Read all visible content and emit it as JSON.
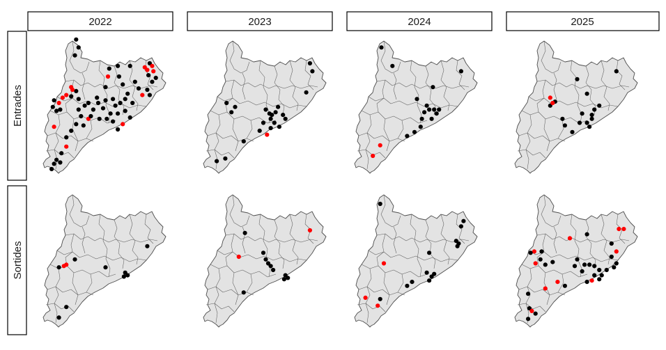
{
  "columns": [
    "2022",
    "2023",
    "2024",
    "2025"
  ],
  "rows": [
    "Entrades",
    "Sortides"
  ],
  "colors": {
    "black": "#000000",
    "red": "#ff0000",
    "land": "#e3e3e3",
    "border": "#4d4d4d"
  },
  "points": [
    [
      [
        [
          0.28,
          0.02,
          "black"
        ],
        [
          0.3,
          0.08,
          "black"
        ],
        [
          0.27,
          0.14,
          "black"
        ],
        [
          0.88,
          0.2,
          "black"
        ],
        [
          0.86,
          0.25,
          "red"
        ],
        [
          0.84,
          0.23,
          "red"
        ],
        [
          0.9,
          0.22,
          "red"
        ],
        [
          0.91,
          0.26,
          "red"
        ],
        [
          0.87,
          0.29,
          "black"
        ],
        [
          0.93,
          0.31,
          "black"
        ],
        [
          0.9,
          0.34,
          "black"
        ],
        [
          0.86,
          0.4,
          "black"
        ],
        [
          0.82,
          0.44,
          "red"
        ],
        [
          0.88,
          0.44,
          "black"
        ],
        [
          0.55,
          0.24,
          "black"
        ],
        [
          0.54,
          0.3,
          "red"
        ],
        [
          0.52,
          0.38,
          "black"
        ],
        [
          0.62,
          0.22,
          "black"
        ],
        [
          0.63,
          0.3,
          "black"
        ],
        [
          0.72,
          0.22,
          "black"
        ],
        [
          0.76,
          0.34,
          "black"
        ],
        [
          0.7,
          0.43,
          "black"
        ],
        [
          0.68,
          0.56,
          "black"
        ],
        [
          0.72,
          0.61,
          "black"
        ],
        [
          0.66,
          0.66,
          "red"
        ],
        [
          0.62,
          0.7,
          "black"
        ],
        [
          0.58,
          0.64,
          "black"
        ],
        [
          0.56,
          0.58,
          "black"
        ],
        [
          0.6,
          0.52,
          "black"
        ],
        [
          0.5,
          0.54,
          "black"
        ],
        [
          0.46,
          0.5,
          "black"
        ],
        [
          0.42,
          0.55,
          "black"
        ],
        [
          0.38,
          0.5,
          "black"
        ],
        [
          0.3,
          0.47,
          "black"
        ],
        [
          0.24,
          0.45,
          "black"
        ],
        [
          0.28,
          0.41,
          "black"
        ],
        [
          0.25,
          0.4,
          "red"
        ],
        [
          0.24,
          0.38,
          "red"
        ],
        [
          0.2,
          0.44,
          "red"
        ],
        [
          0.17,
          0.46,
          "red"
        ],
        [
          0.14,
          0.5,
          "red"
        ],
        [
          0.1,
          0.48,
          "black"
        ],
        [
          0.15,
          0.55,
          "black"
        ],
        [
          0.09,
          0.53,
          "black"
        ],
        [
          0.12,
          0.56,
          "black"
        ],
        [
          0.3,
          0.55,
          "black"
        ],
        [
          0.32,
          0.6,
          "black"
        ],
        [
          0.28,
          0.66,
          "black"
        ],
        [
          0.34,
          0.67,
          "black"
        ],
        [
          0.38,
          0.62,
          "red"
        ],
        [
          0.24,
          0.71,
          "black"
        ],
        [
          0.2,
          0.76,
          "black"
        ],
        [
          0.1,
          0.68,
          "red"
        ],
        [
          0.2,
          0.83,
          "red"
        ],
        [
          0.16,
          0.88,
          "black"
        ],
        [
          0.12,
          0.93,
          "black"
        ],
        [
          0.15,
          0.95,
          "black"
        ],
        [
          0.1,
          0.96,
          "black"
        ],
        [
          0.08,
          1.0,
          "black"
        ],
        [
          0.45,
          0.46,
          "black"
        ],
        [
          0.52,
          0.48,
          "black"
        ],
        [
          0.58,
          0.47,
          "black"
        ],
        [
          0.64,
          0.5,
          "black"
        ],
        [
          0.74,
          0.5,
          "black"
        ],
        [
          0.68,
          0.47,
          "black"
        ],
        [
          0.62,
          0.58,
          "black"
        ],
        [
          0.53,
          0.62,
          "black"
        ],
        [
          0.47,
          0.62,
          "black"
        ],
        [
          0.4,
          0.6,
          "black"
        ],
        [
          0.35,
          0.52,
          "black"
        ],
        [
          0.79,
          0.39,
          "black"
        ],
        [
          0.66,
          0.36,
          "black"
        ]
      ],
      [
        [
          0.88,
          0.2,
          "black"
        ],
        [
          0.9,
          0.26,
          "black"
        ],
        [
          0.85,
          0.42,
          "black"
        ],
        [
          0.2,
          0.5,
          "black"
        ],
        [
          0.27,
          0.53,
          "black"
        ],
        [
          0.24,
          0.57,
          "black"
        ],
        [
          0.52,
          0.55,
          "black"
        ],
        [
          0.56,
          0.62,
          "black"
        ],
        [
          0.6,
          0.57,
          "black"
        ],
        [
          0.62,
          0.53,
          "black"
        ],
        [
          0.59,
          0.65,
          "black"
        ],
        [
          0.56,
          0.69,
          "black"
        ],
        [
          0.5,
          0.65,
          "black"
        ],
        [
          0.47,
          0.71,
          "black"
        ],
        [
          0.53,
          0.74,
          "red"
        ],
        [
          0.66,
          0.59,
          "black"
        ],
        [
          0.68,
          0.62,
          "black"
        ],
        [
          0.63,
          0.68,
          "black"
        ],
        [
          0.55,
          0.58,
          "black"
        ],
        [
          0.34,
          0.79,
          "black"
        ],
        [
          0.12,
          0.94,
          "black"
        ],
        [
          0.19,
          0.92,
          "black"
        ],
        [
          0.57,
          0.59,
          "black"
        ]
      ],
      [
        [
          0.23,
          0.08,
          "black"
        ],
        [
          0.32,
          0.22,
          "black"
        ],
        [
          0.88,
          0.26,
          "black"
        ],
        [
          0.65,
          0.38,
          "black"
        ],
        [
          0.52,
          0.47,
          "black"
        ],
        [
          0.6,
          0.52,
          "black"
        ],
        [
          0.62,
          0.55,
          "black"
        ],
        [
          0.58,
          0.57,
          "black"
        ],
        [
          0.66,
          0.55,
          "black"
        ],
        [
          0.68,
          0.58,
          "black"
        ],
        [
          0.64,
          0.62,
          "black"
        ],
        [
          0.7,
          0.55,
          "black"
        ],
        [
          0.56,
          0.62,
          "black"
        ],
        [
          0.5,
          0.72,
          "black"
        ],
        [
          0.44,
          0.75,
          "black"
        ],
        [
          0.55,
          0.68,
          "black"
        ],
        [
          0.22,
          0.82,
          "red"
        ],
        [
          0.16,
          0.9,
          "red"
        ]
      ],
      [
        [
          0.84,
          0.26,
          "black"
        ],
        [
          0.52,
          0.32,
          "black"
        ],
        [
          0.6,
          0.43,
          "black"
        ],
        [
          0.7,
          0.52,
          "black"
        ],
        [
          0.66,
          0.55,
          "black"
        ],
        [
          0.56,
          0.58,
          "black"
        ],
        [
          0.6,
          0.65,
          "black"
        ],
        [
          0.64,
          0.62,
          "black"
        ],
        [
          0.62,
          0.68,
          "black"
        ],
        [
          0.54,
          0.65,
          "black"
        ],
        [
          0.48,
          0.72,
          "black"
        ],
        [
          0.42,
          0.67,
          "black"
        ],
        [
          0.4,
          0.62,
          "black"
        ],
        [
          0.3,
          0.52,
          "black"
        ],
        [
          0.34,
          0.49,
          "black"
        ],
        [
          0.3,
          0.46,
          "red"
        ],
        [
          0.32,
          0.5,
          "red"
        ],
        [
          0.64,
          0.59,
          "black"
        ]
      ]
    ],
    [
      [
        [
          0.86,
          0.42,
          "black"
        ],
        [
          0.27,
          0.52,
          "black"
        ],
        [
          0.2,
          0.56,
          "red"
        ],
        [
          0.18,
          0.57,
          "red"
        ],
        [
          0.14,
          0.58,
          "black"
        ],
        [
          0.52,
          0.58,
          "black"
        ],
        [
          0.68,
          0.62,
          "black"
        ],
        [
          0.7,
          0.64,
          "black"
        ],
        [
          0.67,
          0.65,
          "black"
        ],
        [
          0.2,
          0.88,
          "black"
        ],
        [
          0.14,
          0.96,
          "black"
        ]
      ],
      [
        [
          0.88,
          0.3,
          "red"
        ],
        [
          0.35,
          0.32,
          "black"
        ],
        [
          0.3,
          0.5,
          "red"
        ],
        [
          0.5,
          0.47,
          "black"
        ],
        [
          0.52,
          0.52,
          "black"
        ],
        [
          0.54,
          0.55,
          "black"
        ],
        [
          0.56,
          0.57,
          "black"
        ],
        [
          0.58,
          0.6,
          "black"
        ],
        [
          0.68,
          0.64,
          "black"
        ],
        [
          0.7,
          0.66,
          "black"
        ],
        [
          0.67,
          0.67,
          "black"
        ],
        [
          0.34,
          0.77,
          "black"
        ]
      ],
      [
        [
          0.22,
          0.1,
          "black"
        ],
        [
          0.9,
          0.23,
          "black"
        ],
        [
          0.88,
          0.27,
          "black"
        ],
        [
          0.84,
          0.38,
          "black"
        ],
        [
          0.86,
          0.4,
          "black"
        ],
        [
          0.85,
          0.42,
          "black"
        ],
        [
          0.62,
          0.47,
          "black"
        ],
        [
          0.25,
          0.55,
          "red"
        ],
        [
          0.6,
          0.62,
          "black"
        ],
        [
          0.64,
          0.65,
          "black"
        ],
        [
          0.66,
          0.63,
          "black"
        ],
        [
          0.62,
          0.68,
          "black"
        ],
        [
          0.48,
          0.69,
          "black"
        ],
        [
          0.44,
          0.72,
          "black"
        ],
        [
          0.1,
          0.81,
          "red"
        ],
        [
          0.2,
          0.87,
          "red"
        ],
        [
          0.22,
          0.82,
          "black"
        ]
      ],
      [
        [
          0.86,
          0.29,
          "red"
        ],
        [
          0.9,
          0.29,
          "red"
        ],
        [
          0.6,
          0.33,
          "black"
        ],
        [
          0.46,
          0.36,
          "red"
        ],
        [
          0.8,
          0.4,
          "black"
        ],
        [
          0.84,
          0.46,
          "red"
        ],
        [
          0.8,
          0.5,
          "black"
        ],
        [
          0.84,
          0.55,
          "black"
        ],
        [
          0.82,
          0.58,
          "black"
        ],
        [
          0.76,
          0.6,
          "black"
        ],
        [
          0.72,
          0.64,
          "black"
        ],
        [
          0.7,
          0.67,
          "black"
        ],
        [
          0.66,
          0.64,
          "black"
        ],
        [
          0.64,
          0.68,
          "red"
        ],
        [
          0.6,
          0.69,
          "black"
        ],
        [
          0.56,
          0.61,
          "black"
        ],
        [
          0.5,
          0.57,
          "black"
        ],
        [
          0.52,
          0.52,
          "black"
        ],
        [
          0.58,
          0.56,
          "black"
        ],
        [
          0.62,
          0.56,
          "black"
        ],
        [
          0.42,
          0.72,
          "black"
        ],
        [
          0.36,
          0.69,
          "red"
        ],
        [
          0.26,
          0.74,
          "red"
        ],
        [
          0.12,
          0.78,
          "black"
        ],
        [
          0.22,
          0.52,
          "black"
        ],
        [
          0.18,
          0.55,
          "red"
        ],
        [
          0.17,
          0.46,
          "red"
        ],
        [
          0.14,
          0.47,
          "black"
        ],
        [
          0.23,
          0.46,
          "black"
        ],
        [
          0.26,
          0.56,
          "black"
        ],
        [
          0.32,
          0.54,
          "black"
        ],
        [
          0.13,
          0.89,
          "black"
        ],
        [
          0.15,
          0.91,
          "red"
        ],
        [
          0.18,
          0.93,
          "black"
        ],
        [
          0.12,
          0.97,
          "black"
        ],
        [
          0.7,
          0.6,
          "black"
        ],
        [
          0.66,
          0.57,
          "black"
        ]
      ]
    ]
  ]
}
